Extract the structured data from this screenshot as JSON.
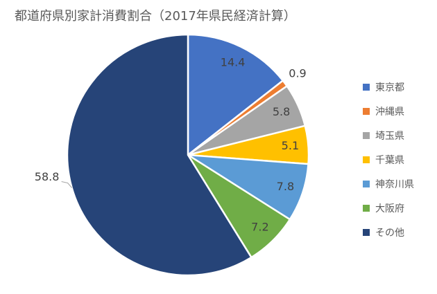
{
  "title": "都道府県別家計消費割合（2017年県民経済計算）",
  "chart_data": {
    "type": "pie",
    "title": "都道府県別家計消費割合（2017年県民経済計算）",
    "categories": [
      "東京都",
      "沖縄県",
      "埼玉県",
      "千葉県",
      "神奈川県",
      "大阪府",
      "その他"
    ],
    "values": [
      14.4,
      0.9,
      5.8,
      5.1,
      7.8,
      7.2,
      58.8
    ],
    "data_labels": [
      "14.4",
      "0.9",
      "5.8",
      "5.1",
      "7.8",
      "7.2",
      "58.8"
    ],
    "colors": [
      "#4472C4",
      "#ED7D31",
      "#A5A5A5",
      "#FFC000",
      "#5B9BD5",
      "#70AD47",
      "#264478"
    ],
    "label_placement": [
      "inside",
      "outside",
      "inside",
      "inside",
      "inside",
      "inside",
      "outside-left"
    ],
    "start_angle": 0,
    "direction": "clockwise",
    "legend_position": "right",
    "slice_border_color": "#FFFFFF",
    "label_color": "#404040",
    "leader_line_color": "#A6A6A6",
    "legend_text_color": "#595959",
    "title_color": "#595959",
    "background": "#FFFFFF"
  }
}
